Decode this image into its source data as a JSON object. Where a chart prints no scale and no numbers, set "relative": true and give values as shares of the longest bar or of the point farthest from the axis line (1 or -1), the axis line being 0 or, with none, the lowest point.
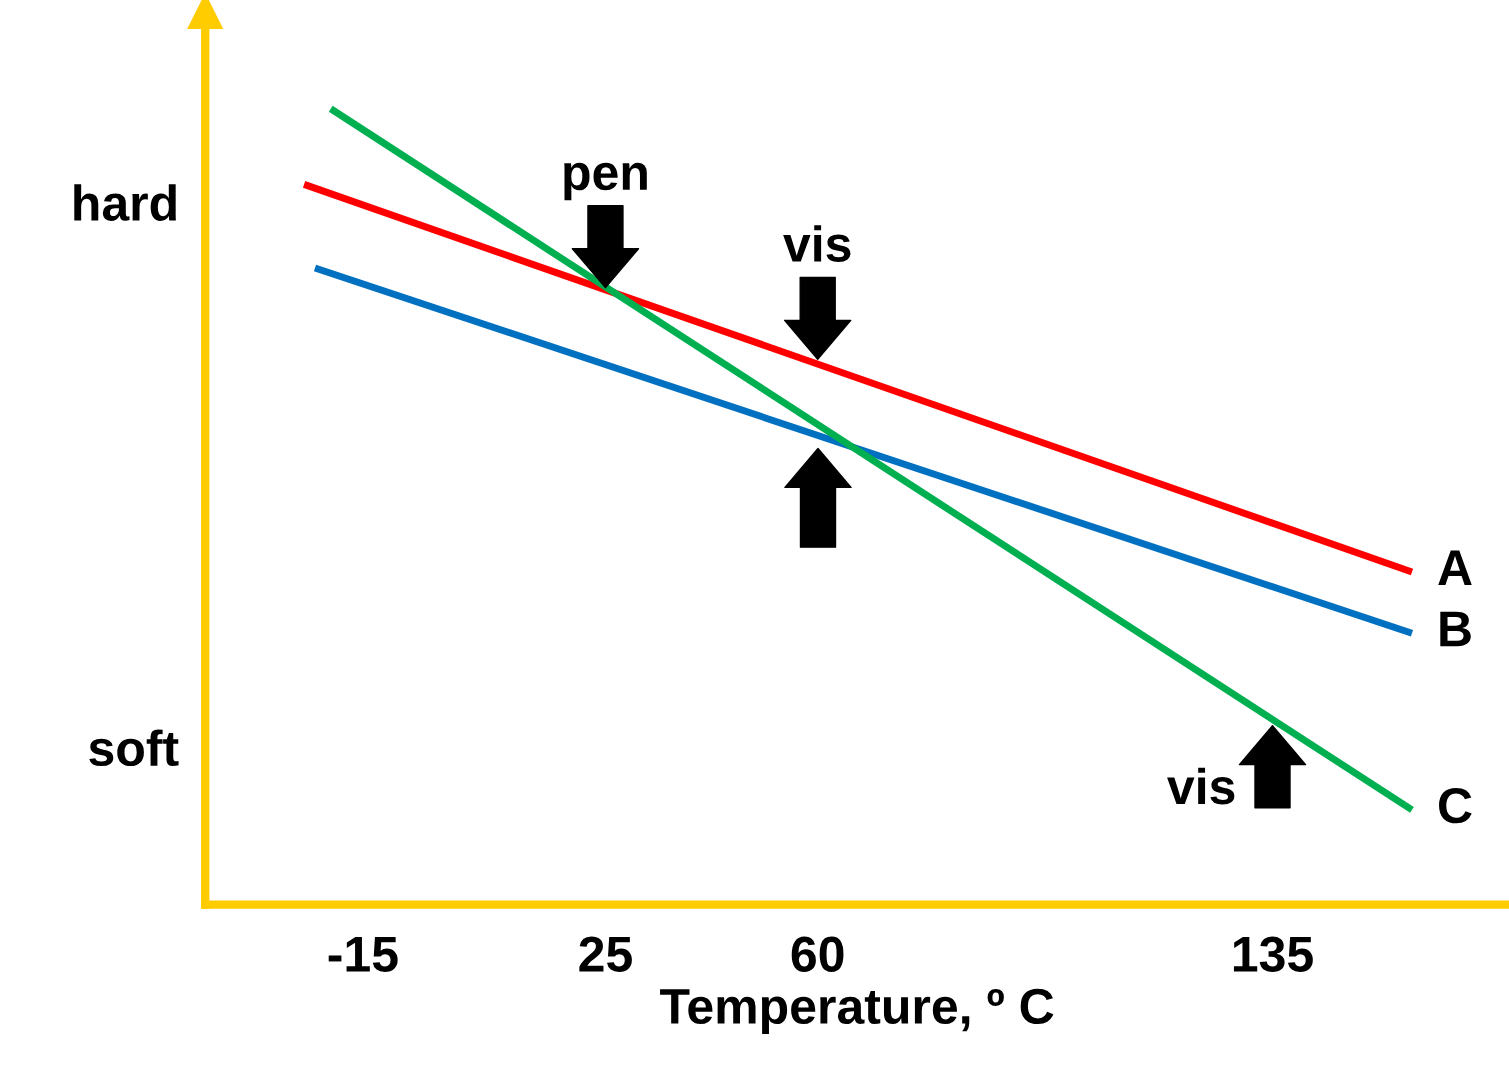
{
  "chart_data": {
    "type": "line",
    "relative": true,
    "xlabel": "Temperature, º C",
    "xlim": [
      -41,
      174
    ],
    "xticks": [
      -15,
      25,
      60,
      135
    ],
    "grid": false,
    "marker": "none",
    "line_style": "solid",
    "series": [
      {
        "name": "A",
        "color": "#ff0000",
        "x": [
          -24.7,
          158
        ],
        "values": [
          0.905,
          0.418
        ]
      },
      {
        "name": "B",
        "color": "#0070c0",
        "x": [
          -22.9,
          158
        ],
        "values": [
          0.8,
          0.341
        ]
      },
      {
        "name": "C",
        "color": "#00b050",
        "x": [
          -20.3,
          158
        ],
        "values": [
          1,
          0.119
        ]
      }
    ],
    "annotations": [
      "hard",
      "soft",
      {
        "text": "pen",
        "x": 25,
        "y": 0.77
      },
      {
        "text": "vis",
        "x": 60,
        "y": 0.68
      },
      {
        "text": "vis",
        "x": 135,
        "y": 0.23
      }
    ]
  }
}
